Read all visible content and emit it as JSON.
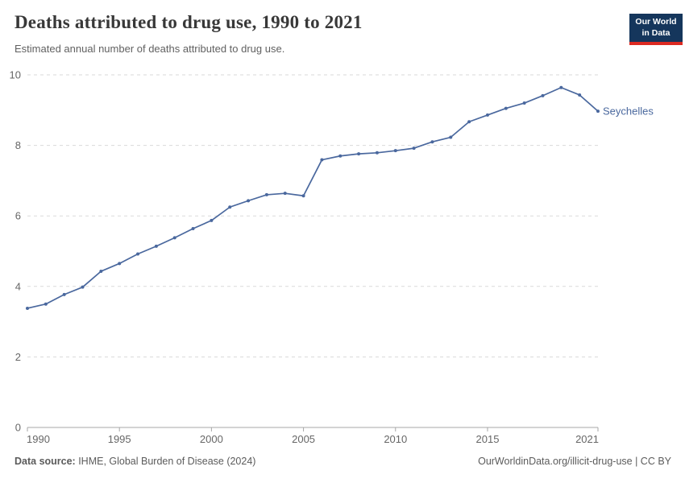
{
  "header": {
    "title": "Deaths attributed to drug use, 1990 to 2021",
    "subtitle": "Estimated annual number of deaths attributed to drug use.",
    "logo_line1": "Our World",
    "logo_line2": "in Data"
  },
  "chart_data": {
    "type": "line",
    "title": "Deaths attributed to drug use, 1990 to 2021",
    "series": [
      {
        "name": "Seychelles",
        "x": [
          1990,
          1991,
          1992,
          1993,
          1994,
          1995,
          1996,
          1997,
          1998,
          1999,
          2000,
          2001,
          2002,
          2003,
          2004,
          2005,
          2006,
          2007,
          2008,
          2009,
          2010,
          2011,
          2012,
          2013,
          2014,
          2015,
          2016,
          2017,
          2018,
          2019,
          2020,
          2021
        ],
        "values": [
          3.38,
          3.5,
          3.77,
          3.98,
          4.43,
          4.65,
          4.92,
          5.14,
          5.38,
          5.64,
          5.87,
          6.25,
          6.43,
          6.6,
          6.64,
          6.57,
          7.59,
          7.7,
          7.76,
          7.79,
          7.85,
          7.92,
          8.1,
          8.23,
          8.67,
          8.86,
          9.05,
          9.2,
          9.41,
          9.64,
          9.43,
          8.97
        ]
      }
    ],
    "xlabel": "",
    "ylabel": "",
    "xlim": [
      1990,
      2021
    ],
    "ylim": [
      0,
      10
    ],
    "yticks": [
      0,
      2,
      4,
      6,
      8,
      10
    ],
    "xticks": [
      1990,
      1995,
      2000,
      2005,
      2010,
      2015,
      2021
    ],
    "grid": true,
    "legend_position": "end-of-line-label",
    "line_color": "#4a689e",
    "entity_label": "Seychelles"
  },
  "footer": {
    "source_label": "Data source:",
    "source_text": " IHME, Global Burden of Disease (2024)",
    "link_text": "OurWorldinData.org/illicit-drug-use | CC BY"
  },
  "colors": {
    "series_blue": "#4a689e",
    "grid_gray": "#dadada",
    "axis_gray": "#a7a7a7",
    "tick_text": "#666666",
    "logo_navy": "#15365c",
    "logo_red": "#dc2a22"
  }
}
